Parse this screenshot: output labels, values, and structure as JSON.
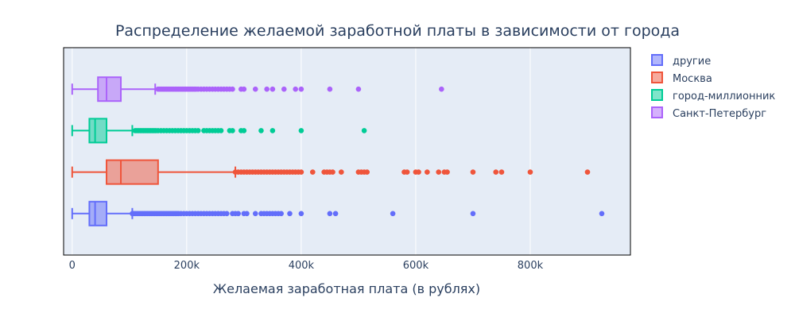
{
  "chart_data": {
    "type": "box",
    "orientation": "horizontal",
    "title": "Распределение желаемой заработной платы в зависимости от города",
    "xlabel": "Желаемая заработная плата (в рублях)",
    "ylabel": "",
    "xlim": [
      -15000,
      975000
    ],
    "xticks": [
      {
        "value": 0,
        "label": "0"
      },
      {
        "value": 200000,
        "label": "200k"
      },
      {
        "value": 400000,
        "label": "400k"
      },
      {
        "value": 600000,
        "label": "600k"
      },
      {
        "value": 800000,
        "label": "800k"
      }
    ],
    "grid": true,
    "legend_position": "top-right",
    "plot_background": "#E5ECF6",
    "series": [
      {
        "name": "другие",
        "color": "#636EFA",
        "min": 0,
        "q1": 30000,
        "median": 40000,
        "q3": 60000,
        "max": 105000,
        "outliers": [
          105000,
          108000,
          111000,
          114000,
          117000,
          120000,
          123000,
          126000,
          129000,
          132000,
          135000,
          138000,
          141000,
          144000,
          147000,
          150000,
          153000,
          156000,
          159000,
          162000,
          165000,
          168000,
          171000,
          174000,
          177000,
          180000,
          183000,
          186000,
          190000,
          195000,
          200000,
          205000,
          210000,
          215000,
          220000,
          225000,
          230000,
          235000,
          240000,
          245000,
          250000,
          255000,
          260000,
          265000,
          270000,
          280000,
          285000,
          290000,
          300000,
          305000,
          320000,
          330000,
          335000,
          340000,
          345000,
          350000,
          355000,
          360000,
          365000,
          380000,
          400000,
          450000,
          460000,
          560000,
          700000,
          925000
        ]
      },
      {
        "name": "Москва",
        "color": "#EF553B",
        "min": 0,
        "q1": 60000,
        "median": 85000,
        "q3": 150000,
        "max": 285000,
        "outliers": [
          285000,
          290000,
          295000,
          300000,
          305000,
          310000,
          315000,
          320000,
          325000,
          330000,
          335000,
          340000,
          345000,
          350000,
          355000,
          360000,
          365000,
          370000,
          375000,
          380000,
          385000,
          390000,
          395000,
          400000,
          420000,
          440000,
          445000,
          450000,
          455000,
          470000,
          500000,
          505000,
          510000,
          515000,
          580000,
          585000,
          600000,
          605000,
          620000,
          640000,
          650000,
          655000,
          700000,
          740000,
          750000,
          800000,
          900000
        ]
      },
      {
        "name": "город-миллионник",
        "color": "#00CC96",
        "min": 0,
        "q1": 30000,
        "median": 40000,
        "q3": 60000,
        "max": 105000,
        "outliers": [
          110000,
          113000,
          116000,
          119000,
          122000,
          125000,
          128000,
          131000,
          134000,
          137000,
          140000,
          143000,
          146000,
          150000,
          155000,
          160000,
          165000,
          170000,
          175000,
          180000,
          185000,
          190000,
          195000,
          200000,
          205000,
          210000,
          215000,
          220000,
          230000,
          235000,
          240000,
          245000,
          250000,
          255000,
          260000,
          275000,
          280000,
          295000,
          300000,
          330000,
          350000,
          400000,
          510000
        ]
      },
      {
        "name": "Санкт-Петербург",
        "color": "#AB63FA",
        "min": 0,
        "q1": 45000,
        "median": 60000,
        "q3": 85000,
        "max": 145000,
        "outliers": [
          150000,
          153000,
          156000,
          159000,
          162000,
          165000,
          168000,
          171000,
          174000,
          177000,
          180000,
          183000,
          186000,
          189000,
          192000,
          195000,
          198000,
          201000,
          204000,
          207000,
          210000,
          213000,
          216000,
          220000,
          225000,
          230000,
          235000,
          240000,
          245000,
          250000,
          255000,
          260000,
          265000,
          270000,
          275000,
          280000,
          295000,
          300000,
          320000,
          340000,
          350000,
          370000,
          390000,
          400000,
          450000,
          500000,
          645000
        ]
      }
    ]
  }
}
